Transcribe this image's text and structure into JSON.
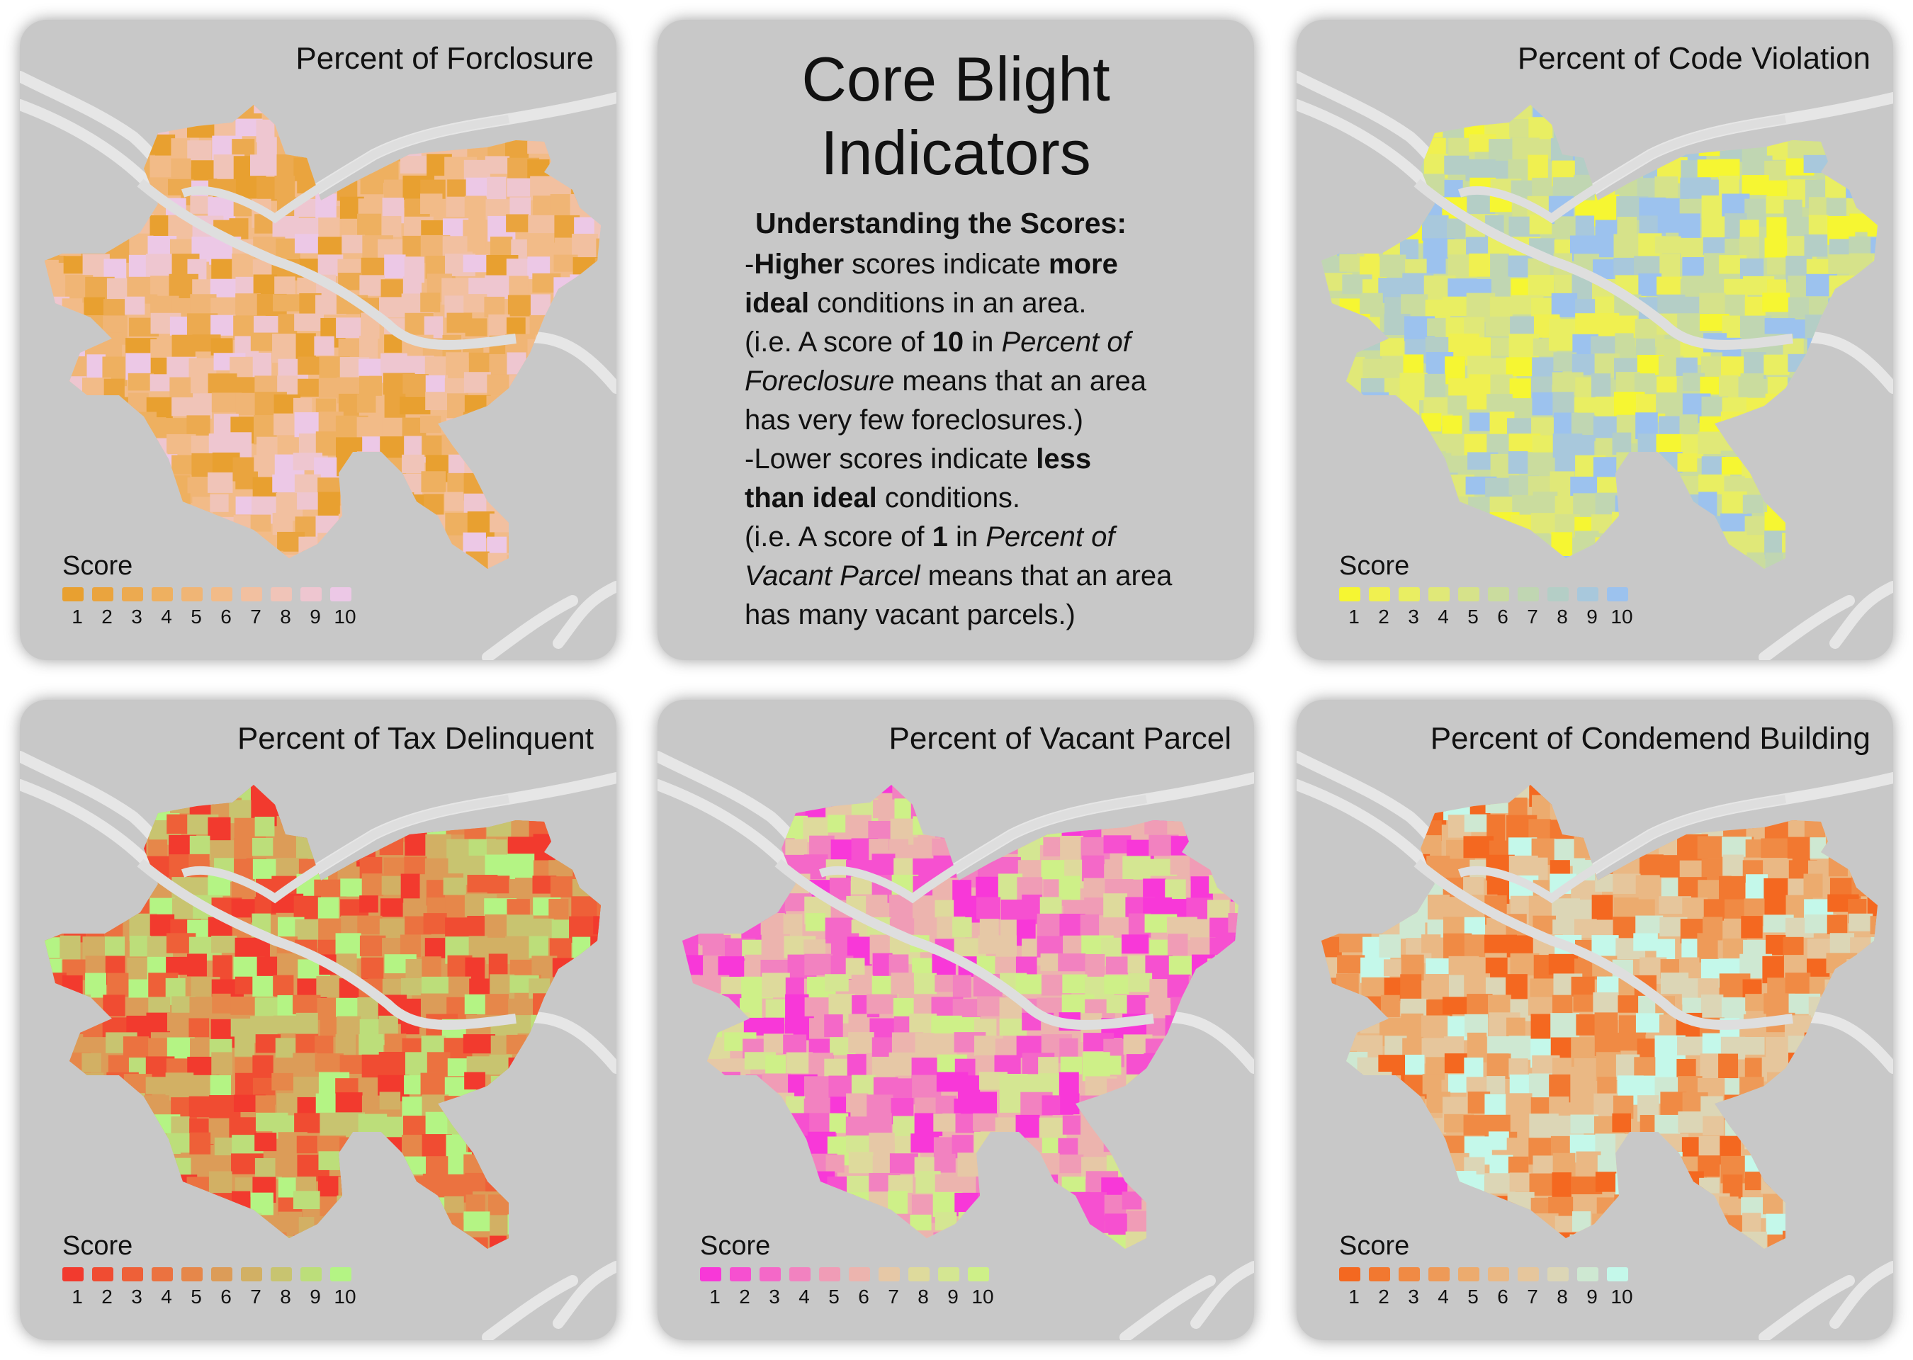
{
  "info": {
    "title_line1": "Core Blight",
    "title_line2": "Indicators",
    "heading": "Understanding the Scores:",
    "l1_a": "-",
    "l1_b": "Higher",
    "l1_c": " scores indicate ",
    "l1_d": "more",
    "l2_a": "ideal",
    "l2_b": " conditions in an area.",
    "l3_a": "(i.e. A score of ",
    "l3_b": "10",
    "l3_c": " in ",
    "l3_d": "Percent of",
    "l4_a": "Foreclosure",
    "l4_b": " means that an area",
    "l5": "has very few foreclosures.)",
    "l6_a": "-Lower scores indicate ",
    "l6_b": "less",
    "l7_a": "than ideal",
    "l7_b": " conditions.",
    "l8_a": "(i.e. A score of ",
    "l8_b": "1",
    "l8_c": " in ",
    "l8_d": "Percent of",
    "l9_a": "Vacant Parcel",
    "l9_b": " means that an area",
    "l10": "has many vacant parcels.)"
  },
  "panels": [
    {
      "title": "Percent of Forclosure",
      "legend_title": "Score",
      "colors": [
        "#e8a030",
        "#eaa43e",
        "#ecaa50",
        "#eeb060",
        "#f0b575",
        "#f2bb88",
        "#f2c0a0",
        "#f0c4b8",
        "#eec6d0",
        "#ecc8e6"
      ]
    },
    {
      "title": "Percent of Code Violation",
      "legend_title": "Score",
      "colors": [
        "#f6f632",
        "#f0f050",
        "#e9ee62",
        "#e0e878",
        "#d6e28a",
        "#cadc9e",
        "#c0d6b2",
        "#b4cec6",
        "#a8c8dc",
        "#9cc2ee"
      ]
    },
    {
      "title": "Percent of Tax Delinquent",
      "legend_title": "Score",
      "colors": [
        "#f23a2e",
        "#f04c32",
        "#ee6038",
        "#eb7240",
        "#e6874a",
        "#dc9c58",
        "#d2b064",
        "#c8c470",
        "#bcde7a",
        "#b4f484"
      ]
    },
    {
      "title": "Percent of Vacant Parcel",
      "legend_title": "Score",
      "colors": [
        "#f838d8",
        "#f650d0",
        "#f468c8",
        "#f282c0",
        "#f09cb6",
        "#ecb4ae",
        "#e6c8a6",
        "#deda9c",
        "#d4e692",
        "#cef088"
      ]
    },
    {
      "title": "Percent of Condemend Building",
      "legend_title": "Score",
      "colors": [
        "#f46820",
        "#f27830",
        "#f08a44",
        "#ee9a58",
        "#ecab6e",
        "#eab884",
        "#e6c69c",
        "#dcd6b6",
        "#cee8d2",
        "#c4f8ea"
      ]
    }
  ],
  "score_labels": [
    "1",
    "2",
    "3",
    "4",
    "5",
    "6",
    "7",
    "8",
    "9",
    "10"
  ]
}
